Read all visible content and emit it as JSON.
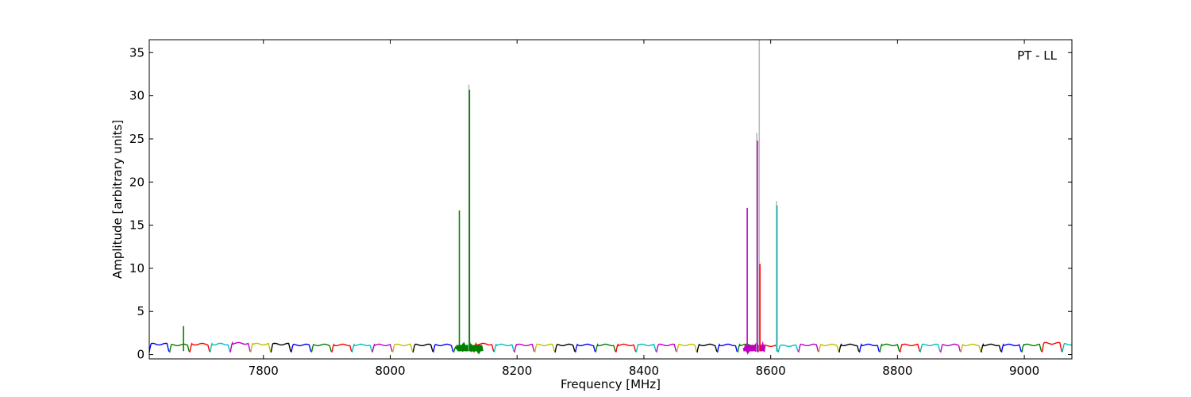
{
  "chart_data": {
    "type": "line",
    "title": "",
    "xlabel": "Frequency [MHz]",
    "ylabel": "Amplitude [arbitrary units]",
    "annotation": "PT - LL",
    "xlim": [
      7620,
      9075
    ],
    "ylim": [
      -0.5,
      36.5
    ],
    "xticks": [
      7800,
      8000,
      8200,
      8400,
      8600,
      8800,
      9000
    ],
    "yticks": [
      0,
      5,
      10,
      15,
      20,
      25,
      30,
      35
    ],
    "grid": false,
    "colors": [
      "#0000ff",
      "#008000",
      "#ff0000",
      "#00bfbf",
      "#bf00bf",
      "#bfbf00",
      "#000000"
    ],
    "channel_width_mhz": 32,
    "channel_start_mhz": 7620,
    "channel_levels": [
      1.3,
      1.2,
      1.3,
      1.3,
      1.4,
      1.3,
      1.3,
      1.2,
      1.2,
      1.2,
      1.2,
      1.2,
      1.2,
      1.2,
      1.2,
      0.9,
      1.3,
      1.2,
      1.2,
      1.2,
      1.2,
      1.2,
      1.2,
      1.2,
      1.2,
      1.2,
      1.2,
      1.2,
      1.2,
      1.2,
      1.1,
      1.1,
      1.2,
      1.2,
      1.2,
      1.2,
      1.2,
      1.2,
      1.2,
      1.2,
      1.2,
      1.2,
      1.2,
      1.2,
      1.4,
      1.3
    ],
    "spikes": [
      {
        "x": 7674,
        "y": 3.3,
        "color": "#008000"
      },
      {
        "x": 8109,
        "y": 16.7,
        "color": "#008000"
      },
      {
        "x": 8124,
        "y": 31.3,
        "color": "#bbbbbb"
      },
      {
        "x": 8125,
        "y": 30.7,
        "color": "#008000"
      },
      {
        "x": 8563,
        "y": 17.0,
        "color": "#bf00bf"
      },
      {
        "x": 8578,
        "y": 25.7,
        "color": "#bbbbbb"
      },
      {
        "x": 8579,
        "y": 24.8,
        "color": "#bf00bf"
      },
      {
        "x": 8582,
        "y": 36.5,
        "color": "#bbbbbb"
      },
      {
        "x": 8583,
        "y": 10.5,
        "color": "#ff0000"
      },
      {
        "x": 8609,
        "y": 17.8,
        "color": "#bbbbbb"
      },
      {
        "x": 8610,
        "y": 17.3,
        "color": "#00bfbf"
      }
    ]
  }
}
